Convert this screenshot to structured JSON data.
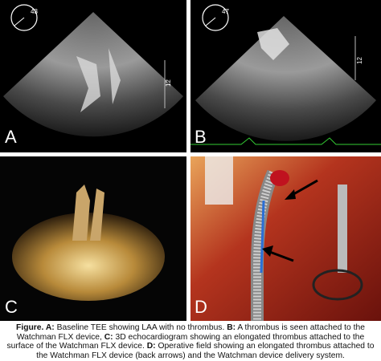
{
  "panels": [
    {
      "label": "A",
      "angle": "43",
      "depth": "12"
    },
    {
      "label": "B",
      "angle": "47",
      "depth": "12"
    },
    {
      "label": "C"
    },
    {
      "label": "D"
    }
  ],
  "caption": [
    {
      "label": "Figure. A:",
      "text": "Baseline TEE showing LAA with no thrombus."
    },
    {
      "label": "B:",
      "text": "A thrombus is seen attached to the Watchman FLX device,"
    },
    {
      "label": "C:",
      "text": "3D echocardiogram showing an elongated thrombus attached to the surface of the Watchman FLX device."
    },
    {
      "label": "D:",
      "text": "Operative field showing an elongated thrombus attached to the Watchman FLX device (back arrows) and the Watchman device delivery system."
    }
  ]
}
